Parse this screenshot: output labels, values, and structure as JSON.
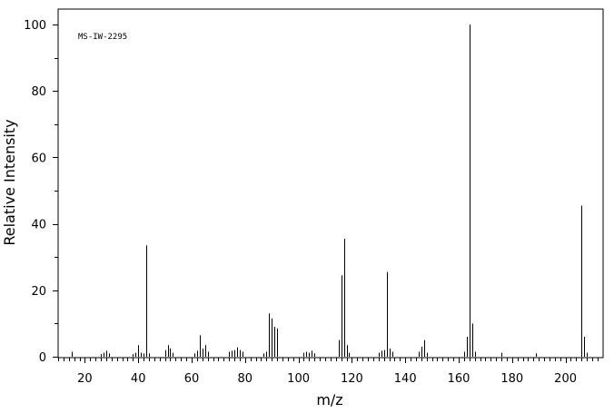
{
  "chart_data": {
    "type": "bar",
    "title": "",
    "annotation": "MS-IW-2295",
    "xlabel": "m/z",
    "ylabel": "Relative Intensity",
    "xlim": [
      10,
      212
    ],
    "ylim": [
      0,
      105
    ],
    "xticks_major": [
      20,
      40,
      60,
      80,
      100,
      120,
      140,
      160,
      180,
      200
    ],
    "xtick_minor_step": 2,
    "yticks_major": [
      0,
      20,
      40,
      60,
      80,
      100
    ],
    "ytick_minor_step": 10,
    "grid": false,
    "x": [
      15,
      26,
      27,
      28,
      29,
      38,
      39,
      40,
      41,
      42,
      43,
      44,
      50,
      51,
      52,
      53,
      61,
      62,
      63,
      64,
      65,
      66,
      74,
      75,
      76,
      77,
      78,
      79,
      87,
      88,
      89,
      90,
      91,
      92,
      102,
      103,
      104,
      105,
      106,
      115,
      116,
      117,
      118,
      119,
      130,
      131,
      132,
      133,
      134,
      135,
      145,
      146,
      147,
      148,
      162,
      163,
      164,
      165,
      166,
      176,
      189,
      206,
      207,
      208
    ],
    "values": [
      1.5,
      0.8,
      1.2,
      1.8,
      1.0,
      0.8,
      1.2,
      3.5,
      1.2,
      1.0,
      33.5,
      1.0,
      2.0,
      3.5,
      2.5,
      1.2,
      1.0,
      1.8,
      6.5,
      2.5,
      3.5,
      1.5,
      1.5,
      1.8,
      2.0,
      2.8,
      2.0,
      1.5,
      1.0,
      1.5,
      13.0,
      11.5,
      9.0,
      8.5,
      1.2,
      1.5,
      1.2,
      1.8,
      1.0,
      5.0,
      24.5,
      35.5,
      3.5,
      1.2,
      1.2,
      1.8,
      2.0,
      25.5,
      2.5,
      1.5,
      1.5,
      3.0,
      5.0,
      1.2,
      1.5,
      6.0,
      100,
      10.0,
      1.5,
      1.2,
      1.0,
      45.5,
      6.0,
      1.2
    ]
  }
}
